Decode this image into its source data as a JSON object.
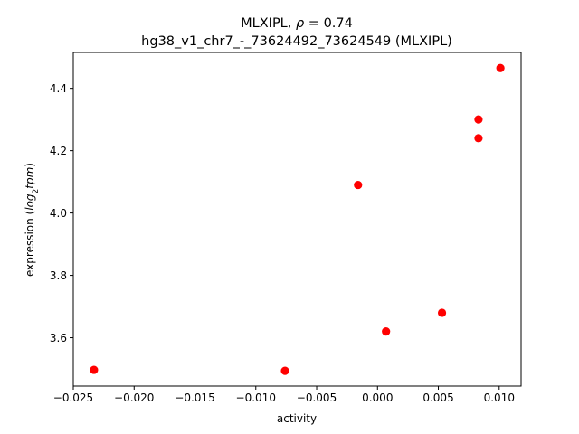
{
  "chart_data": {
    "type": "scatter",
    "title_line1_prefix": "MLXIPL, ",
    "title_line1_symbol": "ρ",
    "title_line1_suffix": " = 0.74",
    "title_line2": "hg38_v1_chr7_-_73624492_73624549 (MLXIPL)",
    "xlabel": "activity",
    "ylabel_prefix": "expression (",
    "ylabel_math_log": "log",
    "ylabel_math_sub": "2",
    "ylabel_math_tpm": "tpm",
    "ylabel_suffix": ")",
    "xlim": [
      -0.025,
      0.0118
    ],
    "ylim": [
      3.445,
      4.515
    ],
    "xticks": [
      -0.025,
      -0.02,
      -0.015,
      -0.01,
      -0.005,
      0.0,
      0.005,
      0.01
    ],
    "xtick_labels": [
      "−0.025",
      "−0.020",
      "−0.015",
      "−0.010",
      "−0.005",
      "0.000",
      "0.005",
      "0.010"
    ],
    "yticks": [
      3.6,
      3.8,
      4.0,
      4.2,
      4.4
    ],
    "ytick_labels": [
      "3.6",
      "3.8",
      "4.0",
      "4.2",
      "4.4"
    ],
    "grid": false,
    "marker_color": "#ff0000",
    "points": [
      {
        "x": -0.0233,
        "y": 3.497
      },
      {
        "x": -0.0076,
        "y": 3.494
      },
      {
        "x": -0.0016,
        "y": 4.09
      },
      {
        "x": 0.0007,
        "y": 3.62
      },
      {
        "x": 0.0053,
        "y": 3.68
      },
      {
        "x": 0.0083,
        "y": 4.3
      },
      {
        "x": 0.0083,
        "y": 4.24
      },
      {
        "x": 0.0101,
        "y": 4.465
      }
    ]
  }
}
